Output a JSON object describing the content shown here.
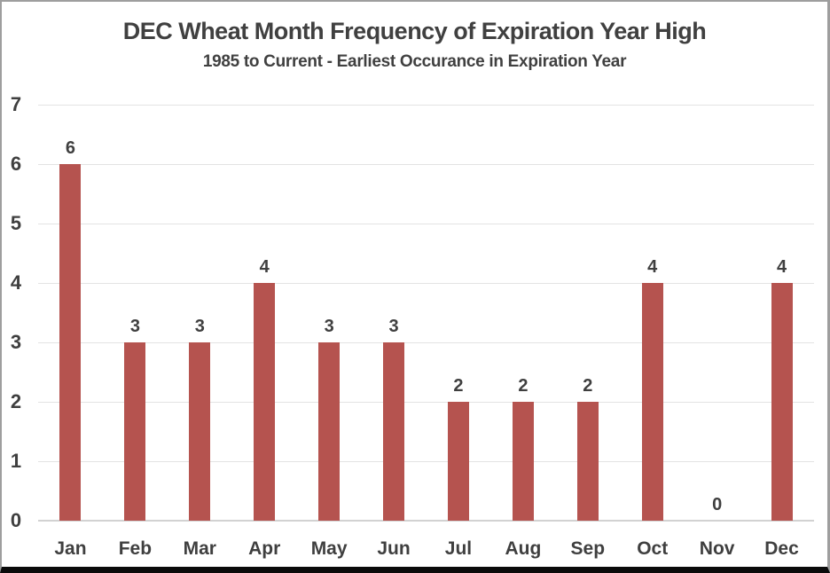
{
  "chart_data": {
    "type": "bar",
    "title": "DEC Wheat Month Frequency of Expiration Year High",
    "subtitle": "1985 to Current - Earliest Occurance in Expiration Year",
    "categories": [
      "Jan",
      "Feb",
      "Mar",
      "Apr",
      "May",
      "Jun",
      "Jul",
      "Aug",
      "Sep",
      "Oct",
      "Nov",
      "Dec"
    ],
    "values": [
      6,
      3,
      3,
      4,
      3,
      3,
      2,
      2,
      2,
      4,
      0,
      4
    ],
    "xlabel": "",
    "ylabel": "",
    "ylim": [
      0,
      7
    ],
    "ytick_interval": 1,
    "yticks": [
      0,
      1,
      2,
      3,
      4,
      5,
      6,
      7
    ],
    "data_labels_shown": true,
    "grid": "horizontal",
    "legend": "none",
    "colors": {
      "bar": "#b5534f",
      "gridline": "#e3e3e3",
      "baseline": "#d2d2d2",
      "text": "#3f3f3f",
      "title_text": "#404040",
      "background": "#ffffff"
    }
  }
}
